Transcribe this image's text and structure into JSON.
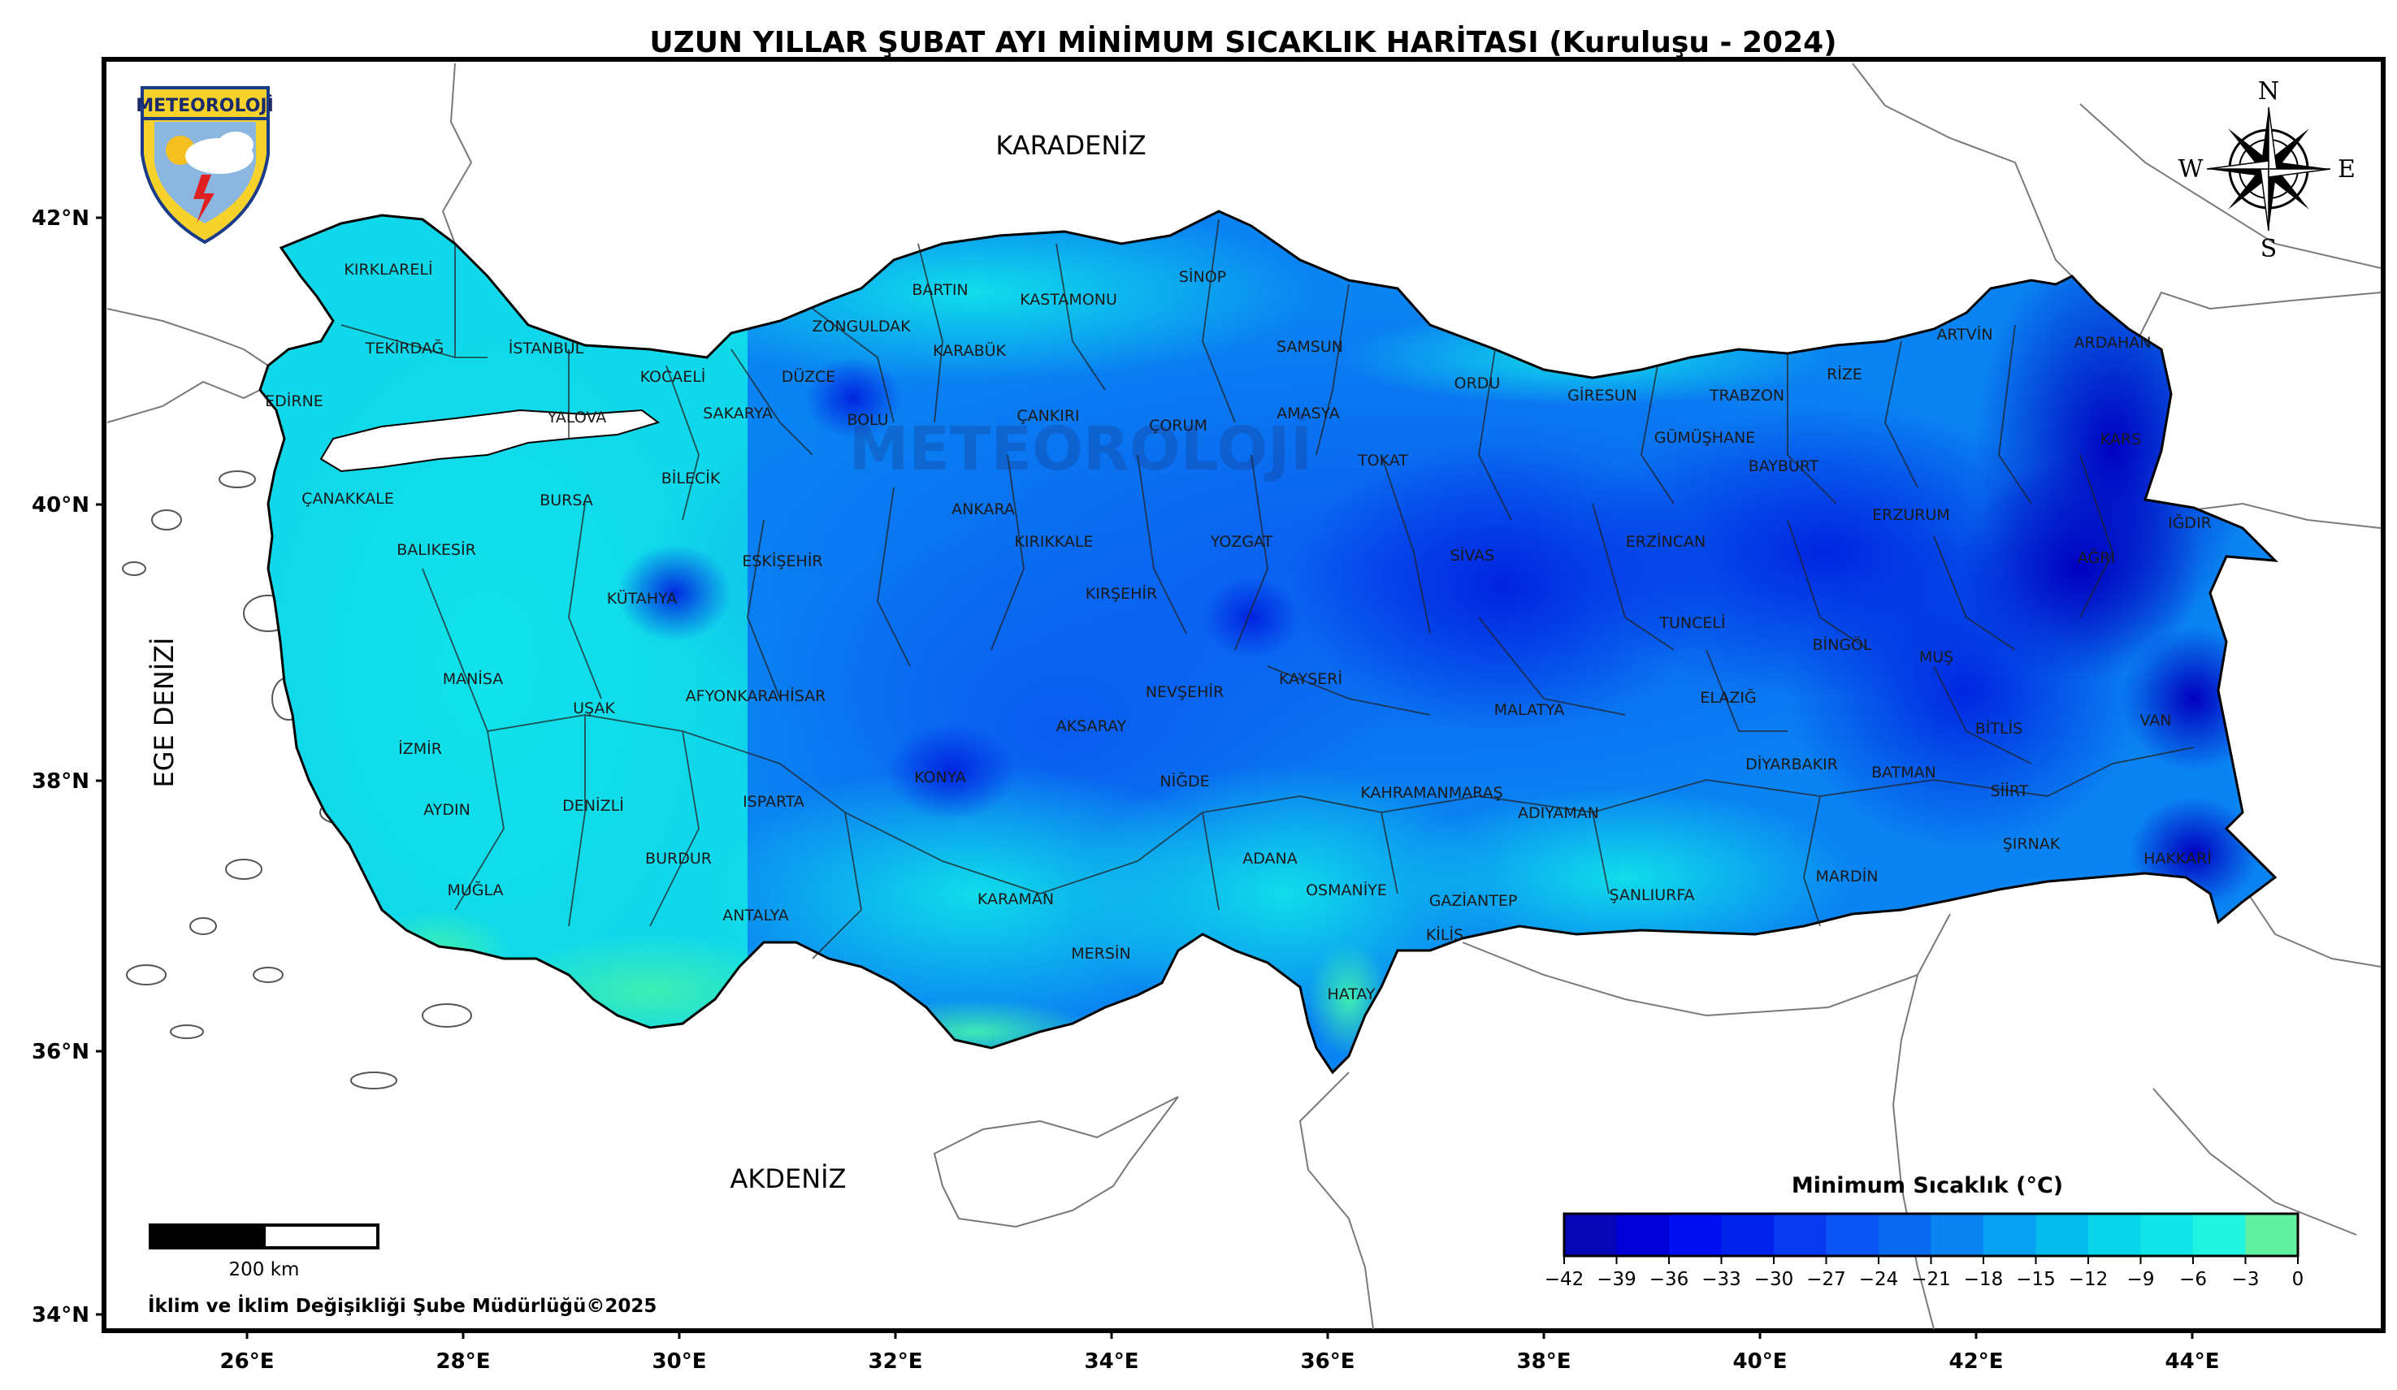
{
  "title": "UZUN YILLAR ŞUBAT AYI MİNİMUM SICAKLIK HARİTASI (Kuruluşu - 2024)",
  "logo_text": "METEOROLOJİ",
  "watermark_text": "METEOROLOJİ",
  "compass": {
    "n": "N",
    "s": "S",
    "e": "E",
    "w": "W"
  },
  "axes": {
    "lon_labels": [
      "26°E",
      "28°E",
      "30°E",
      "32°E",
      "34°E",
      "36°E",
      "38°E",
      "40°E",
      "42°E",
      "44°E"
    ],
    "lat_labels": [
      "42°N",
      "40°N",
      "38°N",
      "36°N",
      "34°N"
    ]
  },
  "seas": {
    "north": "KARADENİZ",
    "south": "AKDENİZ",
    "west": "EGE DENİZİ"
  },
  "provinces": [
    "KIRKLARELİ",
    "TEKİRDAĞ",
    "EDİRNE",
    "İSTANBUL",
    "KOCAELİ",
    "YALOVA",
    "SAKARYA",
    "DÜZCE",
    "BOLU",
    "ZONGULDAK",
    "BARTIN",
    "KARABÜK",
    "KASTAMONU",
    "SİNOP",
    "SAMSUN",
    "ÇANKIRI",
    "ÇORUM",
    "AMASYA",
    "TOKAT",
    "ORDU",
    "GİRESUN",
    "TRABZON",
    "RİZE",
    "ARTVİN",
    "ARDAHAN",
    "KARS",
    "IĞDIR",
    "AĞRI",
    "ERZURUM",
    "BAYBURT",
    "GÜMÜŞHANE",
    "ERZİNCAN",
    "SİVAS",
    "YOZGAT",
    "KIRIKKALE",
    "ANKARA",
    "BİLECİK",
    "BURSA",
    "ÇANAKKALE",
    "BALIKESİR",
    "KÜTAHYA",
    "ESKİŞEHİR",
    "MANİSA",
    "UŞAK",
    "İZMİR",
    "AYDIN",
    "DENİZLİ",
    "MUĞLA",
    "BURDUR",
    "ISPARTA",
    "AFYONKARAHİSAR",
    "KONYA",
    "KARAMAN",
    "ANTALYA",
    "MERSİN",
    "AKSARAY",
    "NİĞDE",
    "NEVŞEHİR",
    "KIRŞEHİR",
    "KAYSERİ",
    "ADANA",
    "OSMANİYE",
    "HATAY",
    "KİLİS",
    "GAZİANTEP",
    "KAHRAMANMARAŞ",
    "ADIYAMAN",
    "MALATYA",
    "ŞANLIURFA",
    "ELAZIĞ",
    "TUNCELİ",
    "BİNGÖL",
    "MUŞ",
    "BİTLİS",
    "VAN",
    "DİYARBAKIR",
    "BATMAN",
    "SİİRT",
    "ŞIRNAK",
    "HAKKARİ",
    "MARDİN"
  ],
  "legend": {
    "title": "Minimum Sıcaklık (°C)",
    "ticks": [
      "−42",
      "−39",
      "−36",
      "−33",
      "−30",
      "−27",
      "−24",
      "−21",
      "−18",
      "−15",
      "−12",
      "−9",
      "−6",
      "−3",
      "0"
    ],
    "colors": [
      "#0606b4",
      "#0000d6",
      "#0010f0",
      "#0022ea",
      "#0a3af0",
      "#0c55f2",
      "#0a6af2",
      "#0a84f2",
      "#08a0f0",
      "#06bcee",
      "#08d4ea",
      "#10e4e6",
      "#20f4de",
      "#60f0a0"
    ]
  },
  "scale_bar": {
    "label": "200 km"
  },
  "credit": "İklim ve İklim Değişikliği Şube Müdürlüğü©2025"
}
